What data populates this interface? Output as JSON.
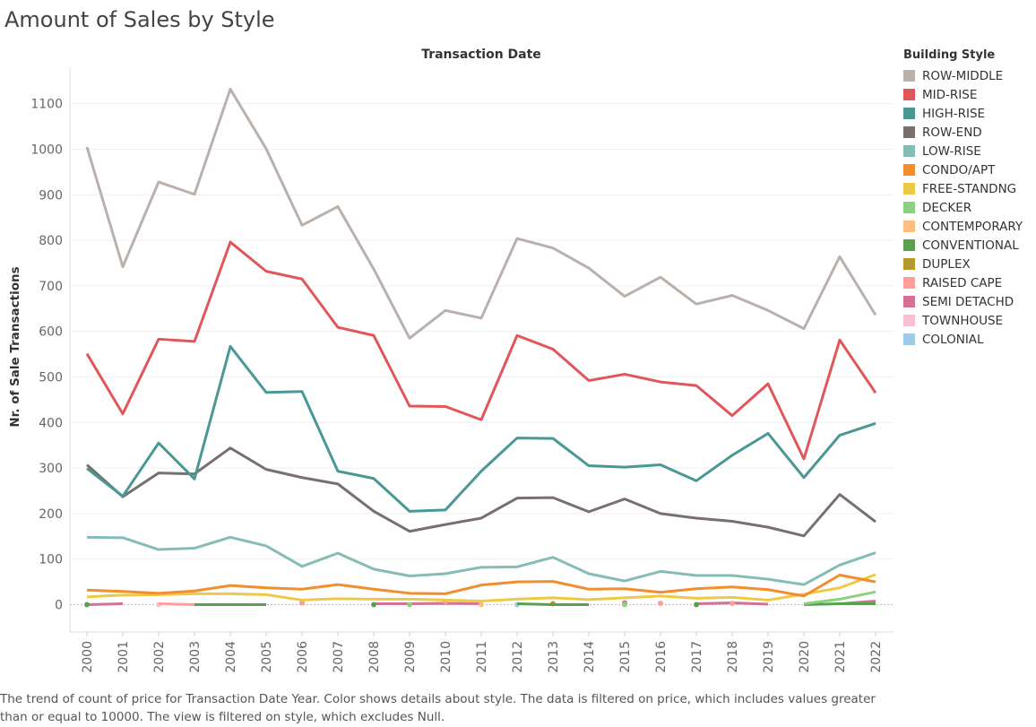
{
  "page": {
    "title": "Amount of Sales by Style",
    "caption": "The trend of count of price for Transaction Date Year.  Color shows details about style. The data is filtered on price, which includes values greater than or equal to 10000. The view is filtered on style, which excludes Null."
  },
  "chart_data": {
    "type": "line",
    "title": "Amount of Sales by Style",
    "top_label": "Transaction Date",
    "xlabel": "",
    "ylabel": "Nr. of Sale Transactions",
    "x": [
      "2000",
      "2001",
      "2002",
      "2003",
      "2004",
      "2005",
      "2006",
      "2007",
      "2008",
      "2009",
      "2010",
      "2011",
      "2012",
      "2013",
      "2014",
      "2015",
      "2016",
      "2017",
      "2018",
      "2019",
      "2020",
      "2021",
      "2022"
    ],
    "ylim": [
      -60,
      1180
    ],
    "yticks": [
      0,
      100,
      200,
      300,
      400,
      500,
      600,
      700,
      800,
      900,
      1000,
      1100
    ],
    "grid": true,
    "legend_title": "Building Style",
    "legend_position": "right",
    "series": [
      {
        "name": "ROW-MIDDLE",
        "color": "#bab0ac",
        "values": [
          1005,
          742,
          928,
          901,
          1132,
          1001,
          833,
          874,
          737,
          585,
          646,
          629,
          804,
          783,
          739,
          677,
          719,
          660,
          679,
          646,
          606,
          764,
          636
        ]
      },
      {
        "name": "MID-RISE",
        "color": "#e15759",
        "values": [
          551,
          419,
          583,
          578,
          796,
          732,
          715,
          609,
          591,
          436,
          435,
          406,
          591,
          561,
          492,
          506,
          489,
          481,
          415,
          485,
          320,
          581,
          465
        ]
      },
      {
        "name": "HIGH-RISE",
        "color": "#499894",
        "values": [
          299,
          238,
          355,
          276,
          567,
          466,
          468,
          293,
          277,
          205,
          208,
          293,
          366,
          365,
          305,
          302,
          307,
          272,
          328,
          376,
          279,
          372,
          398
        ]
      },
      {
        "name": "ROW-END",
        "color": "#79706e",
        "values": [
          307,
          237,
          289,
          287,
          344,
          297,
          279,
          265,
          205,
          161,
          176,
          190,
          234,
          235,
          204,
          232,
          200,
          190,
          183,
          170,
          151,
          242,
          182
        ]
      },
      {
        "name": "LOW-RISE",
        "color": "#86bcb6",
        "values": [
          148,
          147,
          121,
          124,
          148,
          129,
          84,
          113,
          78,
          63,
          68,
          82,
          83,
          104,
          68,
          52,
          73,
          64,
          64,
          56,
          44,
          87,
          114
        ]
      },
      {
        "name": "CONDO/APT",
        "color": "#f28e2b",
        "values": [
          32,
          29,
          25,
          30,
          42,
          37,
          34,
          44,
          34,
          25,
          24,
          43,
          50,
          51,
          34,
          35,
          27,
          35,
          39,
          33,
          19,
          65,
          50
        ]
      },
      {
        "name": "FREE-STANDNG",
        "color": "#edc948",
        "values": [
          17,
          21,
          22,
          24,
          24,
          22,
          10,
          13,
          12,
          12,
          10,
          8,
          12,
          15,
          11,
          15,
          19,
          14,
          16,
          10,
          23,
          37,
          66
        ]
      },
      {
        "name": "DECKER",
        "color": "#8cd17d",
        "values": [
          null,
          null,
          null,
          null,
          null,
          null,
          null,
          null,
          null,
          0,
          null,
          null,
          null,
          null,
          null,
          0,
          null,
          null,
          null,
          null,
          2,
          12,
          28
        ]
      },
      {
        "name": "CONTEMPORARY",
        "color": "#ffbe7d",
        "values": [
          null,
          null,
          null,
          null,
          null,
          null,
          null,
          null,
          null,
          null,
          null,
          0,
          null,
          null,
          null,
          null,
          null,
          null,
          null,
          null,
          null,
          null,
          null
        ]
      },
      {
        "name": "CONVENTIONAL",
        "color": "#59a14f",
        "values": [
          0,
          null,
          null,
          0,
          0,
          0,
          null,
          null,
          0,
          null,
          null,
          null,
          2,
          0,
          0,
          null,
          null,
          0,
          null,
          null,
          0,
          2,
          2
        ]
      },
      {
        "name": "DUPLEX",
        "color": "#b6992d",
        "values": [
          null,
          null,
          null,
          null,
          null,
          null,
          null,
          null,
          null,
          null,
          null,
          null,
          null,
          2,
          null,
          null,
          null,
          null,
          null,
          null,
          null,
          null,
          null
        ]
      },
      {
        "name": "RAISED CAPE",
        "color": "#ff9d9a",
        "values": [
          null,
          null,
          2,
          0,
          null,
          null,
          4,
          null,
          null,
          null,
          7,
          null,
          null,
          null,
          null,
          null,
          3,
          null,
          3,
          null,
          null,
          null,
          null
        ]
      },
      {
        "name": "SEMI DETACHD",
        "color": "#d37295",
        "values": [
          0,
          2,
          null,
          null,
          null,
          null,
          null,
          null,
          2,
          2,
          3,
          2,
          null,
          null,
          null,
          4,
          null,
          2,
          4,
          1,
          null,
          2,
          8
        ]
      },
      {
        "name": "TOWNHOUSE",
        "color": "#fabfd2",
        "values": [
          null,
          null,
          0,
          null,
          null,
          null,
          null,
          null,
          null,
          null,
          null,
          null,
          null,
          null,
          null,
          null,
          null,
          null,
          null,
          null,
          null,
          null,
          null
        ]
      },
      {
        "name": "COLONIAL",
        "color": "#a0cbe8",
        "values": [
          null,
          null,
          null,
          null,
          null,
          null,
          null,
          null,
          null,
          null,
          null,
          null,
          0,
          null,
          null,
          null,
          null,
          null,
          null,
          null,
          null,
          null,
          null
        ]
      }
    ]
  }
}
